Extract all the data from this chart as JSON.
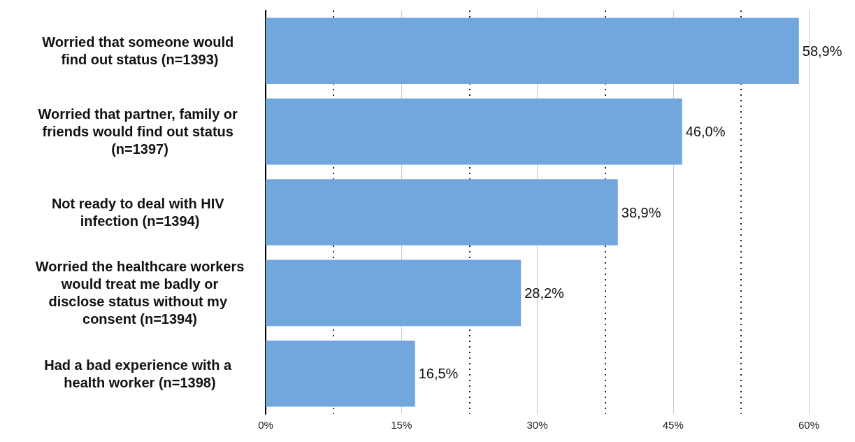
{
  "chart_data": {
    "type": "bar",
    "orientation": "horizontal",
    "categories": [
      "Worried that someone would find out status (n=1393)",
      "Worried that partner, family or friends would find out status (n=1397)",
      "Not ready to deal with HIV infection (n=1394)",
      "Worried the healthcare workers would treat me badly or disclose status without my consent (n=1394)",
      "Had a bad experience with a health worker (n=1398)"
    ],
    "values": [
      58.9,
      46.0,
      38.9,
      28.2,
      16.5
    ],
    "value_labels": [
      "58,9%",
      "46,0%",
      "38,9%",
      "28,2%",
      "16,5%"
    ],
    "color": "#71a7dc",
    "xlim": [
      0,
      60
    ],
    "xticks": [
      {
        "value": 0,
        "label": "0%"
      },
      {
        "value": 7.5,
        "label": null
      },
      {
        "value": 15,
        "label": "15%"
      },
      {
        "value": 22.5,
        "label": null
      },
      {
        "value": 30,
        "label": "30%"
      },
      {
        "value": 37.5,
        "label": null
      },
      {
        "value": 45,
        "label": "45%"
      },
      {
        "value": 52.5,
        "label": null
      },
      {
        "value": 60,
        "label": "60%"
      }
    ],
    "grid": "x"
  }
}
